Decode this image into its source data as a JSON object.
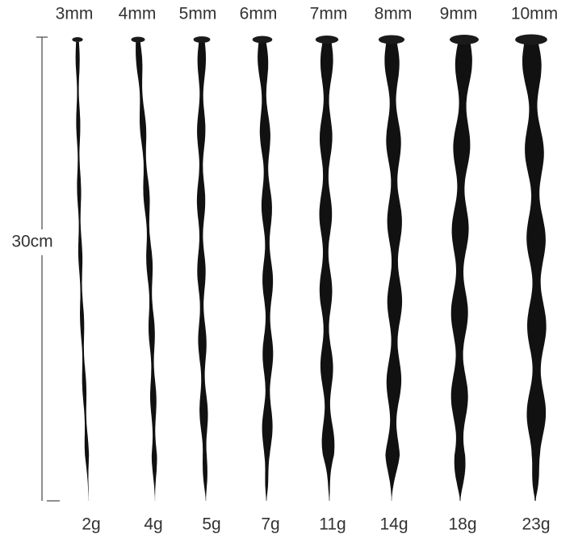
{
  "length": "30cm",
  "items": [
    {
      "size": "3mm",
      "weight": "2g"
    },
    {
      "size": "4mm",
      "weight": "4g"
    },
    {
      "size": "5mm",
      "weight": "5g"
    },
    {
      "size": "6mm",
      "weight": "7g"
    },
    {
      "size": "7mm",
      "weight": "11g"
    },
    {
      "size": "8mm",
      "weight": "14g"
    },
    {
      "size": "9mm",
      "weight": "18g"
    },
    {
      "size": "10mm",
      "weight": "23g"
    }
  ]
}
